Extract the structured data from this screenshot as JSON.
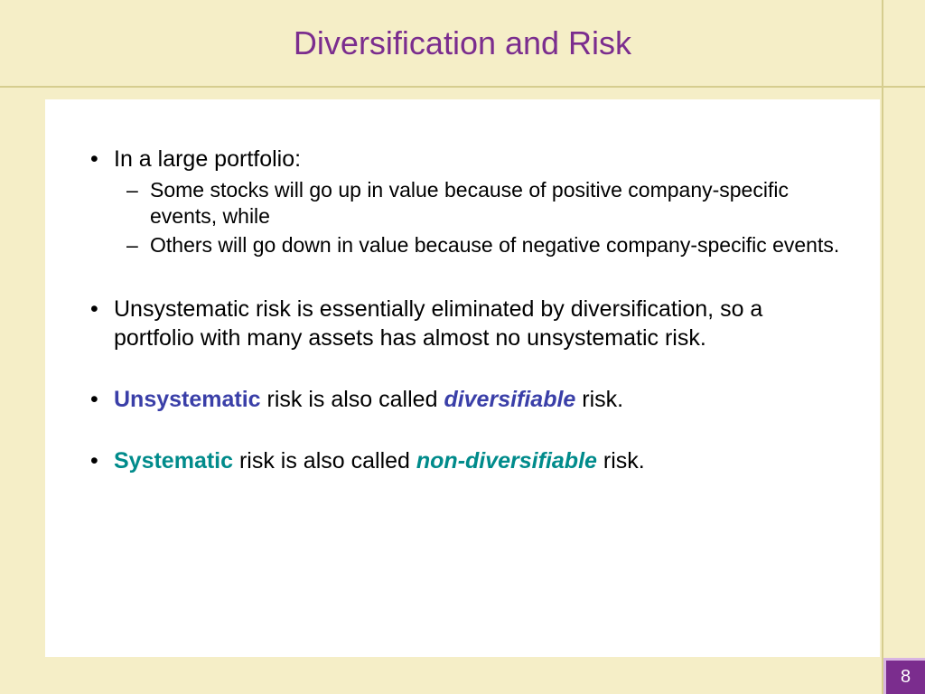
{
  "title": "Diversification and Risk",
  "colors": {
    "background": "#f5eec7",
    "content_bg": "#ffffff",
    "title": "#7b2d8e",
    "rule": "#d6cd8f",
    "text": "#000000",
    "blue": "#3a3fa8",
    "teal": "#008b8b",
    "pagenum_bg": "#7b2d8e",
    "pagenum_border": "#d8b4e2",
    "pagenum_text": "#ffffff"
  },
  "typography": {
    "title_fontsize": 36,
    "body_fontsize": 25,
    "sub_fontsize": 23,
    "pagenum_fontsize": 20,
    "font_family": "Arial"
  },
  "bullets": {
    "b1": {
      "text": "In a large portfolio:",
      "sub": [
        "Some stocks will go up in value because of positive company-specific events, while",
        "Others will go down in value because of negative company-specific events."
      ]
    },
    "b2": {
      "text": "Unsystematic risk is essentially eliminated by diversification, so a portfolio with many assets has almost no unsystematic risk."
    },
    "b3": {
      "part1": "Unsystematic",
      "part2": " risk is also called ",
      "part3": "diversifiable",
      "part4": " risk."
    },
    "b4": {
      "part1": "Systematic",
      "part2": " risk is also called ",
      "part3": "non-diversifiable",
      "part4": " risk."
    }
  },
  "page_number": "8"
}
